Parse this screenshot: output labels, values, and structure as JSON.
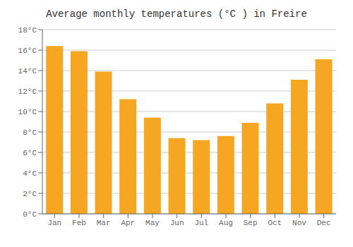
{
  "chart_data": {
    "type": "bar",
    "title": "Average monthly temperatures (°C ) in Freire",
    "categories": [
      "Jan",
      "Feb",
      "Mar",
      "Apr",
      "May",
      "Jun",
      "Jul",
      "Aug",
      "Sep",
      "Oct",
      "Nov",
      "Dec"
    ],
    "values": [
      16.4,
      15.9,
      13.9,
      11.2,
      9.4,
      7.4,
      7.2,
      7.6,
      8.9,
      10.8,
      13.1,
      15.1
    ],
    "color": "#F5A623",
    "ylim": [
      0,
      18
    ],
    "yticks": [
      {
        "value": 0,
        "label": "0°C"
      },
      {
        "value": 2,
        "label": "2°C"
      },
      {
        "value": 4,
        "label": "4°C"
      },
      {
        "value": 6,
        "label": "6°C"
      },
      {
        "value": 8,
        "label": "8°C"
      },
      {
        "value": 10,
        "label": "10°C"
      },
      {
        "value": 12,
        "label": "12°C"
      },
      {
        "value": 14,
        "label": "14°C"
      },
      {
        "value": 16,
        "label": "16°C"
      },
      {
        "value": 18,
        "label": "18°C"
      }
    ],
    "grid": true
  }
}
